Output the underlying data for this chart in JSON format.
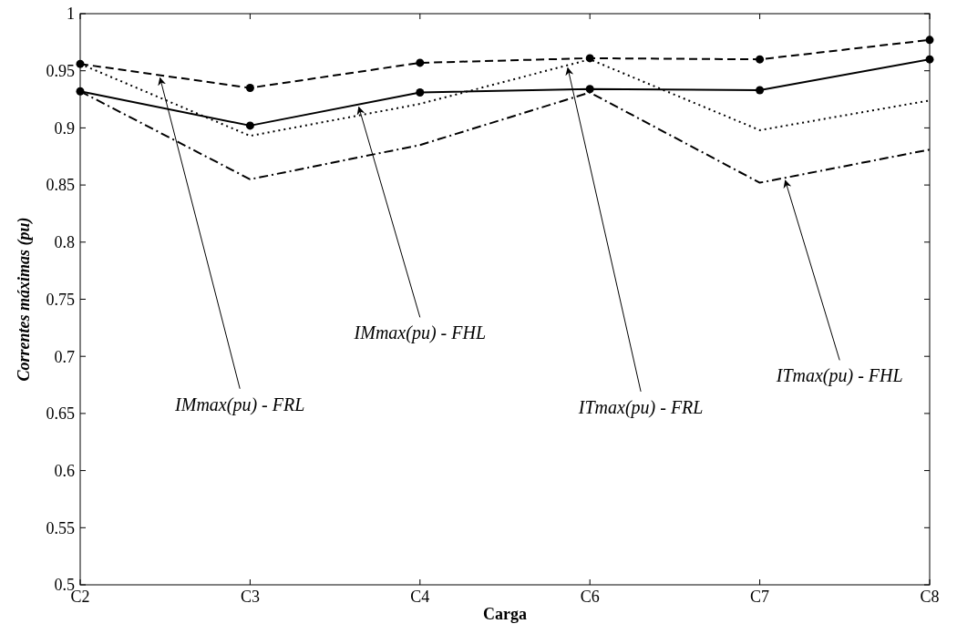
{
  "chart_data": {
    "type": "line",
    "xlabel": "Carga",
    "ylabel": "Correntes máximas (pu)",
    "categories": [
      "C2",
      "C3",
      "C4",
      "C6",
      "C7",
      "C8"
    ],
    "ylim": [
      0.5,
      1
    ],
    "yticks": [
      0.5,
      0.55,
      0.6,
      0.65,
      0.7,
      0.75,
      0.8,
      0.85,
      0.9,
      0.95,
      1
    ],
    "grid": false,
    "series": [
      {
        "name": "IMmax(pu) - FRL",
        "color": "#000000",
        "values": [
          0.956,
          0.935,
          0.957,
          0.961,
          0.96,
          0.977
        ],
        "line_style": "dashed",
        "marker": "circle"
      },
      {
        "name": "IMmax(pu) - FHL",
        "color": "#000000",
        "values": [
          0.932,
          0.902,
          0.931,
          0.934,
          0.933,
          0.96
        ],
        "line_style": "solid",
        "marker": "circle"
      },
      {
        "name": "ITmax(pu) - FRL",
        "color": "#000000",
        "values": [
          0.956,
          0.893,
          0.921,
          0.96,
          0.898,
          0.924
        ],
        "line_style": "dotted",
        "marker": "none"
      },
      {
        "name": "ITmax(pu) - FHL",
        "color": "#000000",
        "values": [
          0.932,
          0.855,
          0.885,
          0.931,
          0.852,
          0.881
        ],
        "line_style": "dashdot",
        "marker": "none"
      }
    ]
  }
}
